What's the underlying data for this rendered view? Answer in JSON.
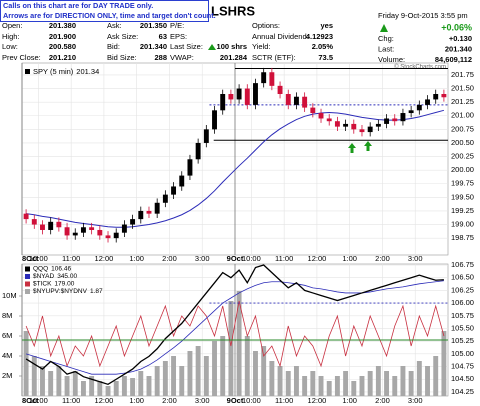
{
  "header": {
    "note": [
      "Calls on this chart are for DAY TRADE only.",
      "Arrows are for DIRECTION ONLY, time and target don't count."
    ],
    "title": "LSHRS",
    "date": "Friday  9-Oct-2015  3:55 pm",
    "change_pct": "+0.06%",
    "columns": [
      [
        {
          "label": "Open:",
          "value": "201.380"
        },
        {
          "label": "High:",
          "value": "201.900"
        },
        {
          "label": "Low:",
          "value": "200.580"
        },
        {
          "label": "Prev Close:",
          "value": "201.210"
        }
      ],
      [
        {
          "label": "Ask:",
          "value": "201.350"
        },
        {
          "label": "Ask Size:",
          "value": "63"
        },
        {
          "label": "Bid:",
          "value": "201.340"
        },
        {
          "label": "Bid Size:",
          "value": "288"
        }
      ],
      [
        {
          "label": "P/E:"
        },
        {
          "label": "EPS:"
        },
        {
          "label": "Last Size:",
          "value": "100 shrs"
        },
        {
          "label": "VWAP:",
          "value": "201.284"
        }
      ],
      [
        {
          "label": "Options:",
          "value": "yes"
        },
        {
          "label": "Annual Dividend:",
          "value": "4.12923"
        },
        {
          "label": "Yield:",
          "value": "2.05%"
        },
        {
          "label": "SCTR (ETF):",
          "value": "73.5"
        }
      ]
    ],
    "right": [
      {
        "label": "Chg:",
        "value": "+0.130"
      },
      {
        "label": "Last:",
        "value": "201.340"
      },
      {
        "label": "Volume:",
        "value": "84,609,112"
      }
    ],
    "credit": "© StockCharts.com"
  },
  "chart_data": [
    {
      "type": "candlestick",
      "name": "SPY (5 min)",
      "legend_value": "201.34",
      "up_color": "#000000",
      "down_color": "#d0103a",
      "categories": [
        "8Oct",
        null,
        "10:00",
        null,
        null,
        null,
        "11:00",
        null,
        null,
        null,
        "12:00",
        null,
        null,
        null,
        "1:00",
        null,
        null,
        null,
        "2:00",
        null,
        null,
        null,
        "3:00",
        null,
        null,
        null,
        "9Oct",
        null,
        "10:00",
        null,
        null,
        null,
        "11:00",
        null,
        null,
        null,
        "12:00",
        null,
        null,
        null,
        "1:00",
        null,
        null,
        null,
        "2:00",
        null,
        null,
        null,
        "3:00",
        null,
        null,
        null
      ],
      "open": [
        199.2,
        199.1,
        199.0,
        198.9,
        199.05,
        198.95,
        198.8,
        198.85,
        198.95,
        198.9,
        198.8,
        198.75,
        198.85,
        199.0,
        199.1,
        199.25,
        199.2,
        199.4,
        199.55,
        199.7,
        199.9,
        200.2,
        200.5,
        200.75,
        201.1,
        201.4,
        201.3,
        201.5,
        201.2,
        201.6,
        201.8,
        201.55,
        201.4,
        201.2,
        201.35,
        201.15,
        201.05,
        200.95,
        200.9,
        200.8,
        200.85,
        200.75,
        200.7,
        200.8,
        200.85,
        200.95,
        200.9,
        201.05,
        201.1,
        201.2,
        201.3,
        201.4
      ],
      "high": [
        199.28,
        199.18,
        199.08,
        199.13,
        199.13,
        199.03,
        198.93,
        199.03,
        199.03,
        198.98,
        198.88,
        198.93,
        199.08,
        199.18,
        199.33,
        199.33,
        199.48,
        199.63,
        199.78,
        199.98,
        200.28,
        200.58,
        200.83,
        201.18,
        201.48,
        201.48,
        201.58,
        201.58,
        201.68,
        201.88,
        201.88,
        201.63,
        201.48,
        201.43,
        201.43,
        201.23,
        201.13,
        201.03,
        200.98,
        200.93,
        200.93,
        200.83,
        200.88,
        200.93,
        201.03,
        201.03,
        201.13,
        201.18,
        201.28,
        201.38,
        201.48,
        201.48
      ],
      "low": [
        199.02,
        198.92,
        198.82,
        198.82,
        198.87,
        198.72,
        198.72,
        198.77,
        198.82,
        198.72,
        198.67,
        198.67,
        198.77,
        198.92,
        199.02,
        199.12,
        199.12,
        199.32,
        199.47,
        199.62,
        199.82,
        200.12,
        200.42,
        200.67,
        201.02,
        201.22,
        201.22,
        201.12,
        201.12,
        201.52,
        201.47,
        201.32,
        201.12,
        201.12,
        201.07,
        200.97,
        200.87,
        200.82,
        200.72,
        200.72,
        200.67,
        200.62,
        200.62,
        200.72,
        200.77,
        200.82,
        200.82,
        200.97,
        201.02,
        201.12,
        201.22,
        201.26
      ],
      "close": [
        199.1,
        199.0,
        198.9,
        199.05,
        198.95,
        198.8,
        198.85,
        198.95,
        198.9,
        198.8,
        198.75,
        198.85,
        199.0,
        199.1,
        199.25,
        199.2,
        199.4,
        199.55,
        199.7,
        199.9,
        200.2,
        200.5,
        200.75,
        201.1,
        201.4,
        201.3,
        201.5,
        201.2,
        201.6,
        201.8,
        201.55,
        201.4,
        201.2,
        201.35,
        201.15,
        201.05,
        200.95,
        200.9,
        200.8,
        200.85,
        200.75,
        200.7,
        200.8,
        200.85,
        200.95,
        200.9,
        201.05,
        201.1,
        201.2,
        201.3,
        201.4,
        201.34
      ],
      "lines": [
        {
          "color": "#2b2bb8",
          "values": [
            199.2,
            199.18,
            199.15,
            199.13,
            199.1,
            199.07,
            199.04,
            199.02,
            199.0,
            198.98,
            198.96,
            198.95,
            198.95,
            198.96,
            198.98,
            199.0,
            199.03,
            199.07,
            199.12,
            199.18,
            199.26,
            199.36,
            199.48,
            199.62,
            199.78,
            199.93,
            200.08,
            200.22,
            200.37,
            200.52,
            200.65,
            200.76,
            200.85,
            200.93,
            200.99,
            201.03,
            201.05,
            201.06,
            201.05,
            201.03,
            201.0,
            200.97,
            200.95,
            200.93,
            200.92,
            200.92,
            200.93,
            200.95,
            200.98,
            201.02,
            201.06,
            201.1
          ]
        }
      ],
      "hlines": [
        {
          "value": 201.87,
          "color": "#000000"
        },
        {
          "value": 201.2,
          "color": "#2b2bb8",
          "dashed": true
        },
        {
          "value": 200.55,
          "color": "#000000"
        }
      ],
      "ylim": [
        198.44,
        201.97
      ],
      "yticks": [
        198.75,
        {
          "value": 199,
          "label": "199.00"
        },
        199.25,
        {
          "value": 199.5,
          "label": "199.50"
        },
        199.75,
        {
          "value": 200,
          "label": "200.00"
        },
        200.25,
        {
          "value": 200.5,
          "label": "200.50"
        },
        200.75,
        {
          "value": 201,
          "label": "201.00"
        },
        201.25,
        {
          "value": 201.5,
          "label": "201.50"
        },
        201.75
      ],
      "grid": true
    },
    {
      "type": "combo",
      "categories": [
        "8Oct",
        null,
        "10:00",
        null,
        null,
        null,
        "11:00",
        null,
        null,
        null,
        "12:00",
        null,
        null,
        null,
        "1:00",
        null,
        null,
        null,
        "2:00",
        null,
        null,
        null,
        "3:00",
        null,
        null,
        null,
        "9Oct",
        null,
        "10:00",
        null,
        null,
        null,
        "11:00",
        null,
        null,
        null,
        "12:00",
        null,
        null,
        null,
        "1:00",
        null,
        null,
        null,
        "2:00",
        null,
        null,
        null,
        "3:00",
        null,
        null,
        null
      ],
      "series": [
        {
          "name": "$NYUPV:$NYDNV",
          "legend_value": "1.87",
          "kind": "bar",
          "axis": "y",
          "color": "#a8a8a8",
          "values": [
            6500000,
            4000000,
            3000000,
            2500000,
            3000000,
            2000000,
            2500000,
            1500000,
            2000000,
            1500000,
            1000000,
            1500000,
            2000000,
            1800000,
            2500000,
            2000000,
            3000000,
            3500000,
            4000000,
            3000000,
            4500000,
            5000000,
            4000000,
            5500000,
            6000000,
            9500000,
            10500000,
            6000000,
            4500000,
            5000000,
            3500000,
            3000000,
            2500000,
            3000000,
            2000000,
            2500000,
            2000000,
            1500000,
            2000000,
            2500000,
            1500000,
            2000000,
            2500000,
            3000000,
            2500000,
            2000000,
            3000000,
            2500000,
            3500000,
            3000000,
            4000000,
            6500000
          ]
        },
        {
          "name": "$TICK",
          "legend_value": "179.00",
          "kind": "line",
          "axis": "y",
          "color": "#c83040",
          "values": [
            7000000,
            5000000,
            8000000,
            4000000,
            6000000,
            3000000,
            5000000,
            4000000,
            6000000,
            3000000,
            5000000,
            7000000,
            4000000,
            6000000,
            8000000,
            5000000,
            7000000,
            9000000,
            6000000,
            8000000,
            7000000,
            9000000,
            8000000,
            6000000,
            9000000,
            5000000,
            9500000,
            6000000,
            8000000,
            4000000,
            5000000,
            3000000,
            7000000,
            4000000,
            6000000,
            5000000,
            3000000,
            6000000,
            8000000,
            4000000,
            7000000,
            5000000,
            8000000,
            6000000,
            4000000,
            7000000,
            9000000,
            5000000,
            8000000,
            6000000,
            9000000,
            6000000
          ]
        },
        {
          "name": "$NYAD",
          "legend_value": "345.00",
          "kind": "line",
          "axis": "y2",
          "color": "#2b2bb8",
          "values": [
            105.0,
            104.95,
            104.9,
            104.85,
            104.8,
            104.75,
            104.7,
            104.65,
            104.6,
            104.6,
            104.6,
            104.6,
            104.62,
            104.65,
            104.7,
            104.78,
            104.88,
            105.0,
            105.12,
            105.25,
            105.4,
            105.55,
            105.7,
            105.85,
            106.0,
            106.1,
            106.2,
            106.28,
            106.35,
            106.4,
            106.42,
            106.42,
            106.4,
            106.38,
            106.35,
            106.3,
            106.28,
            106.25,
            106.22,
            106.2,
            106.2,
            106.2,
            106.22,
            106.25,
            106.28,
            106.3,
            106.32,
            106.35,
            106.38,
            106.4,
            106.42,
            106.44
          ]
        },
        {
          "name": "QQQ",
          "legend_value": "106.46",
          "kind": "line",
          "axis": "y2",
          "color": "#000000",
          "values": [
            104.9,
            104.8,
            104.7,
            104.85,
            104.75,
            104.6,
            104.65,
            104.55,
            104.5,
            104.45,
            104.4,
            104.5,
            104.6,
            104.7,
            104.85,
            104.95,
            105.1,
            105.3,
            105.45,
            105.6,
            105.8,
            106.0,
            106.2,
            106.4,
            106.6,
            106.5,
            106.65,
            106.4,
            106.7,
            106.75,
            106.6,
            106.45,
            106.3,
            106.4,
            106.25,
            106.2,
            106.15,
            106.1,
            106.05,
            106.1,
            106.15,
            106.2,
            106.25,
            106.3,
            106.35,
            106.4,
            106.45,
            106.5,
            106.55,
            106.5,
            106.45,
            106.46
          ]
        }
      ],
      "hlines": [
        {
          "value": 106,
          "axis": "y2",
          "color": "#2b2bb8",
          "dashed": true
        },
        {
          "value": 5600000,
          "axis": "y",
          "color": "#2a8a2a"
        }
      ],
      "ylim": [
        0,
        13200000
      ],
      "yticks": [
        {
          "value": 2000000,
          "label": "2M"
        },
        {
          "value": 4000000,
          "label": "4M"
        },
        {
          "value": 6000000,
          "label": "6M"
        },
        {
          "value": 8000000,
          "label": "8M"
        },
        {
          "value": 10000000,
          "label": "10M"
        }
      ],
      "y2lim": [
        104.17,
        106.77
      ],
      "y2ticks": [
        104.25,
        {
          "value": 104.5,
          "label": "104.50"
        },
        104.75,
        {
          "value": 105,
          "label": "105.00"
        },
        105.25,
        {
          "value": 105.5,
          "label": "105.50"
        },
        105.75,
        {
          "value": 106,
          "label": "106.00"
        },
        106.25,
        {
          "value": 106.5,
          "label": "106.50"
        },
        106.75
      ],
      "grid": true
    }
  ]
}
